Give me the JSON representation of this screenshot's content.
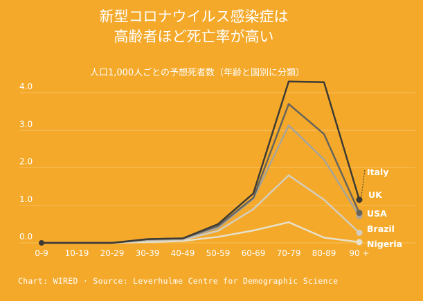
{
  "header": {
    "title_line1": "新型コロナウイルス感染症は",
    "title_line2": "高齢者ほど死亡率が高い"
  },
  "footer": {
    "source": "Chart: WIRED · Source: Leverhulme Centre for Demographic Science"
  },
  "colors": {
    "background": "#F4A92A",
    "gridline": "#F7BE5A",
    "text": "#ffffff"
  },
  "chart_data": {
    "type": "line",
    "subtitle": "人口1,000人ごとの予想死者数（年齢と国別に分類）",
    "categories": [
      "0-9",
      "10-19",
      "20-29",
      "30-39",
      "40-49",
      "50-59",
      "60-69",
      "70-79",
      "80-89",
      "90 +"
    ],
    "yticks": [
      "0.0",
      "1.0",
      "2.0",
      "3.0",
      "4.0"
    ],
    "ylim": [
      0,
      4.3
    ],
    "grid": true,
    "legend": "direct-labels-right",
    "series": [
      {
        "name": "Italy",
        "color": "#3D3B34",
        "values": [
          0,
          0,
          0,
          0.1,
          0.12,
          0.5,
          1.32,
          4.3,
          4.28,
          1.15
        ]
      },
      {
        "name": "UK",
        "color": "#66645C",
        "values": [
          0,
          0,
          0,
          0.1,
          0.12,
          0.45,
          1.2,
          3.7,
          2.9,
          0.8
        ]
      },
      {
        "name": "USA",
        "color": "#A8A49A",
        "values": [
          0,
          0,
          0,
          0.08,
          0.1,
          0.4,
          1.18,
          3.13,
          2.22,
          0.72
        ]
      },
      {
        "name": "Brazil",
        "color": "#D3CEBF",
        "values": [
          0,
          0,
          0,
          0.05,
          0.08,
          0.32,
          0.9,
          1.8,
          1.15,
          0.27
        ]
      },
      {
        "name": "Nigeria",
        "color": "#E8E1CB",
        "values": [
          0,
          0,
          0,
          0.02,
          0.05,
          0.16,
          0.33,
          0.55,
          0.14,
          0.02
        ]
      }
    ]
  }
}
